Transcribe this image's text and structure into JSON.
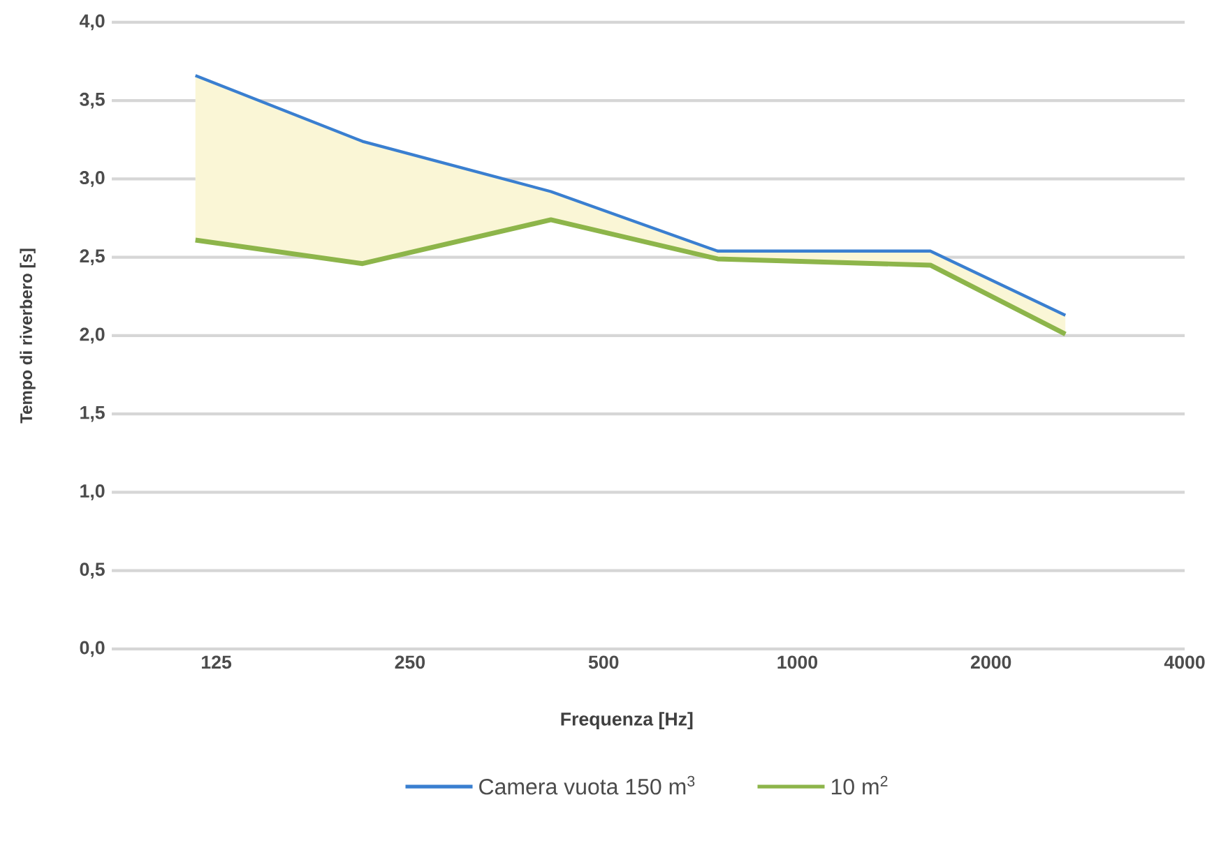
{
  "chart_data": {
    "type": "line",
    "xlabel": "Frequenza [Hz]",
    "ylabel": "Tempo di riverbero [s]",
    "log": "x",
    "xlim": [
      86,
      4000
    ],
    "ylim": [
      0,
      4
    ],
    "xticks": [
      125,
      250,
      500,
      1000,
      2000,
      4000
    ],
    "yticks": [
      {
        "value": 0,
        "label": "0,0"
      },
      {
        "value": 0.5,
        "label": "0,5"
      },
      {
        "value": 1,
        "label": "1,0"
      },
      {
        "value": 1.5,
        "label": "1,5"
      },
      {
        "value": 2,
        "label": "2,0"
      },
      {
        "value": 2.5,
        "label": "2,5"
      },
      {
        "value": 3,
        "label": "3,0"
      },
      {
        "value": 3.5,
        "label": "3,5"
      },
      {
        "value": 4,
        "label": "4,0"
      }
    ],
    "grid": "y",
    "legend": "bottom",
    "series": [
      {
        "name": "Camera vuota 150 m$^{3}$",
        "color": "#3a7fd0",
        "x": [
          116,
          211,
          414,
          752,
          1610,
          2610
        ],
        "values": [
          3.66,
          3.24,
          2.92,
          2.54,
          2.54,
          2.13
        ],
        "lower": [
          2.61,
          2.46,
          2.74,
          2.49,
          2.45,
          2.01
        ],
        "upper": [
          3.66,
          3.24,
          2.92,
          2.54,
          2.54,
          2.13
        ]
      },
      {
        "name": "10 m$^{2}$",
        "color": "#8db54a",
        "x": [
          116,
          211,
          414,
          752,
          1610,
          2610
        ],
        "values": [
          2.61,
          2.46,
          2.74,
          2.49,
          2.45,
          2.01
        ]
      }
    ]
  }
}
